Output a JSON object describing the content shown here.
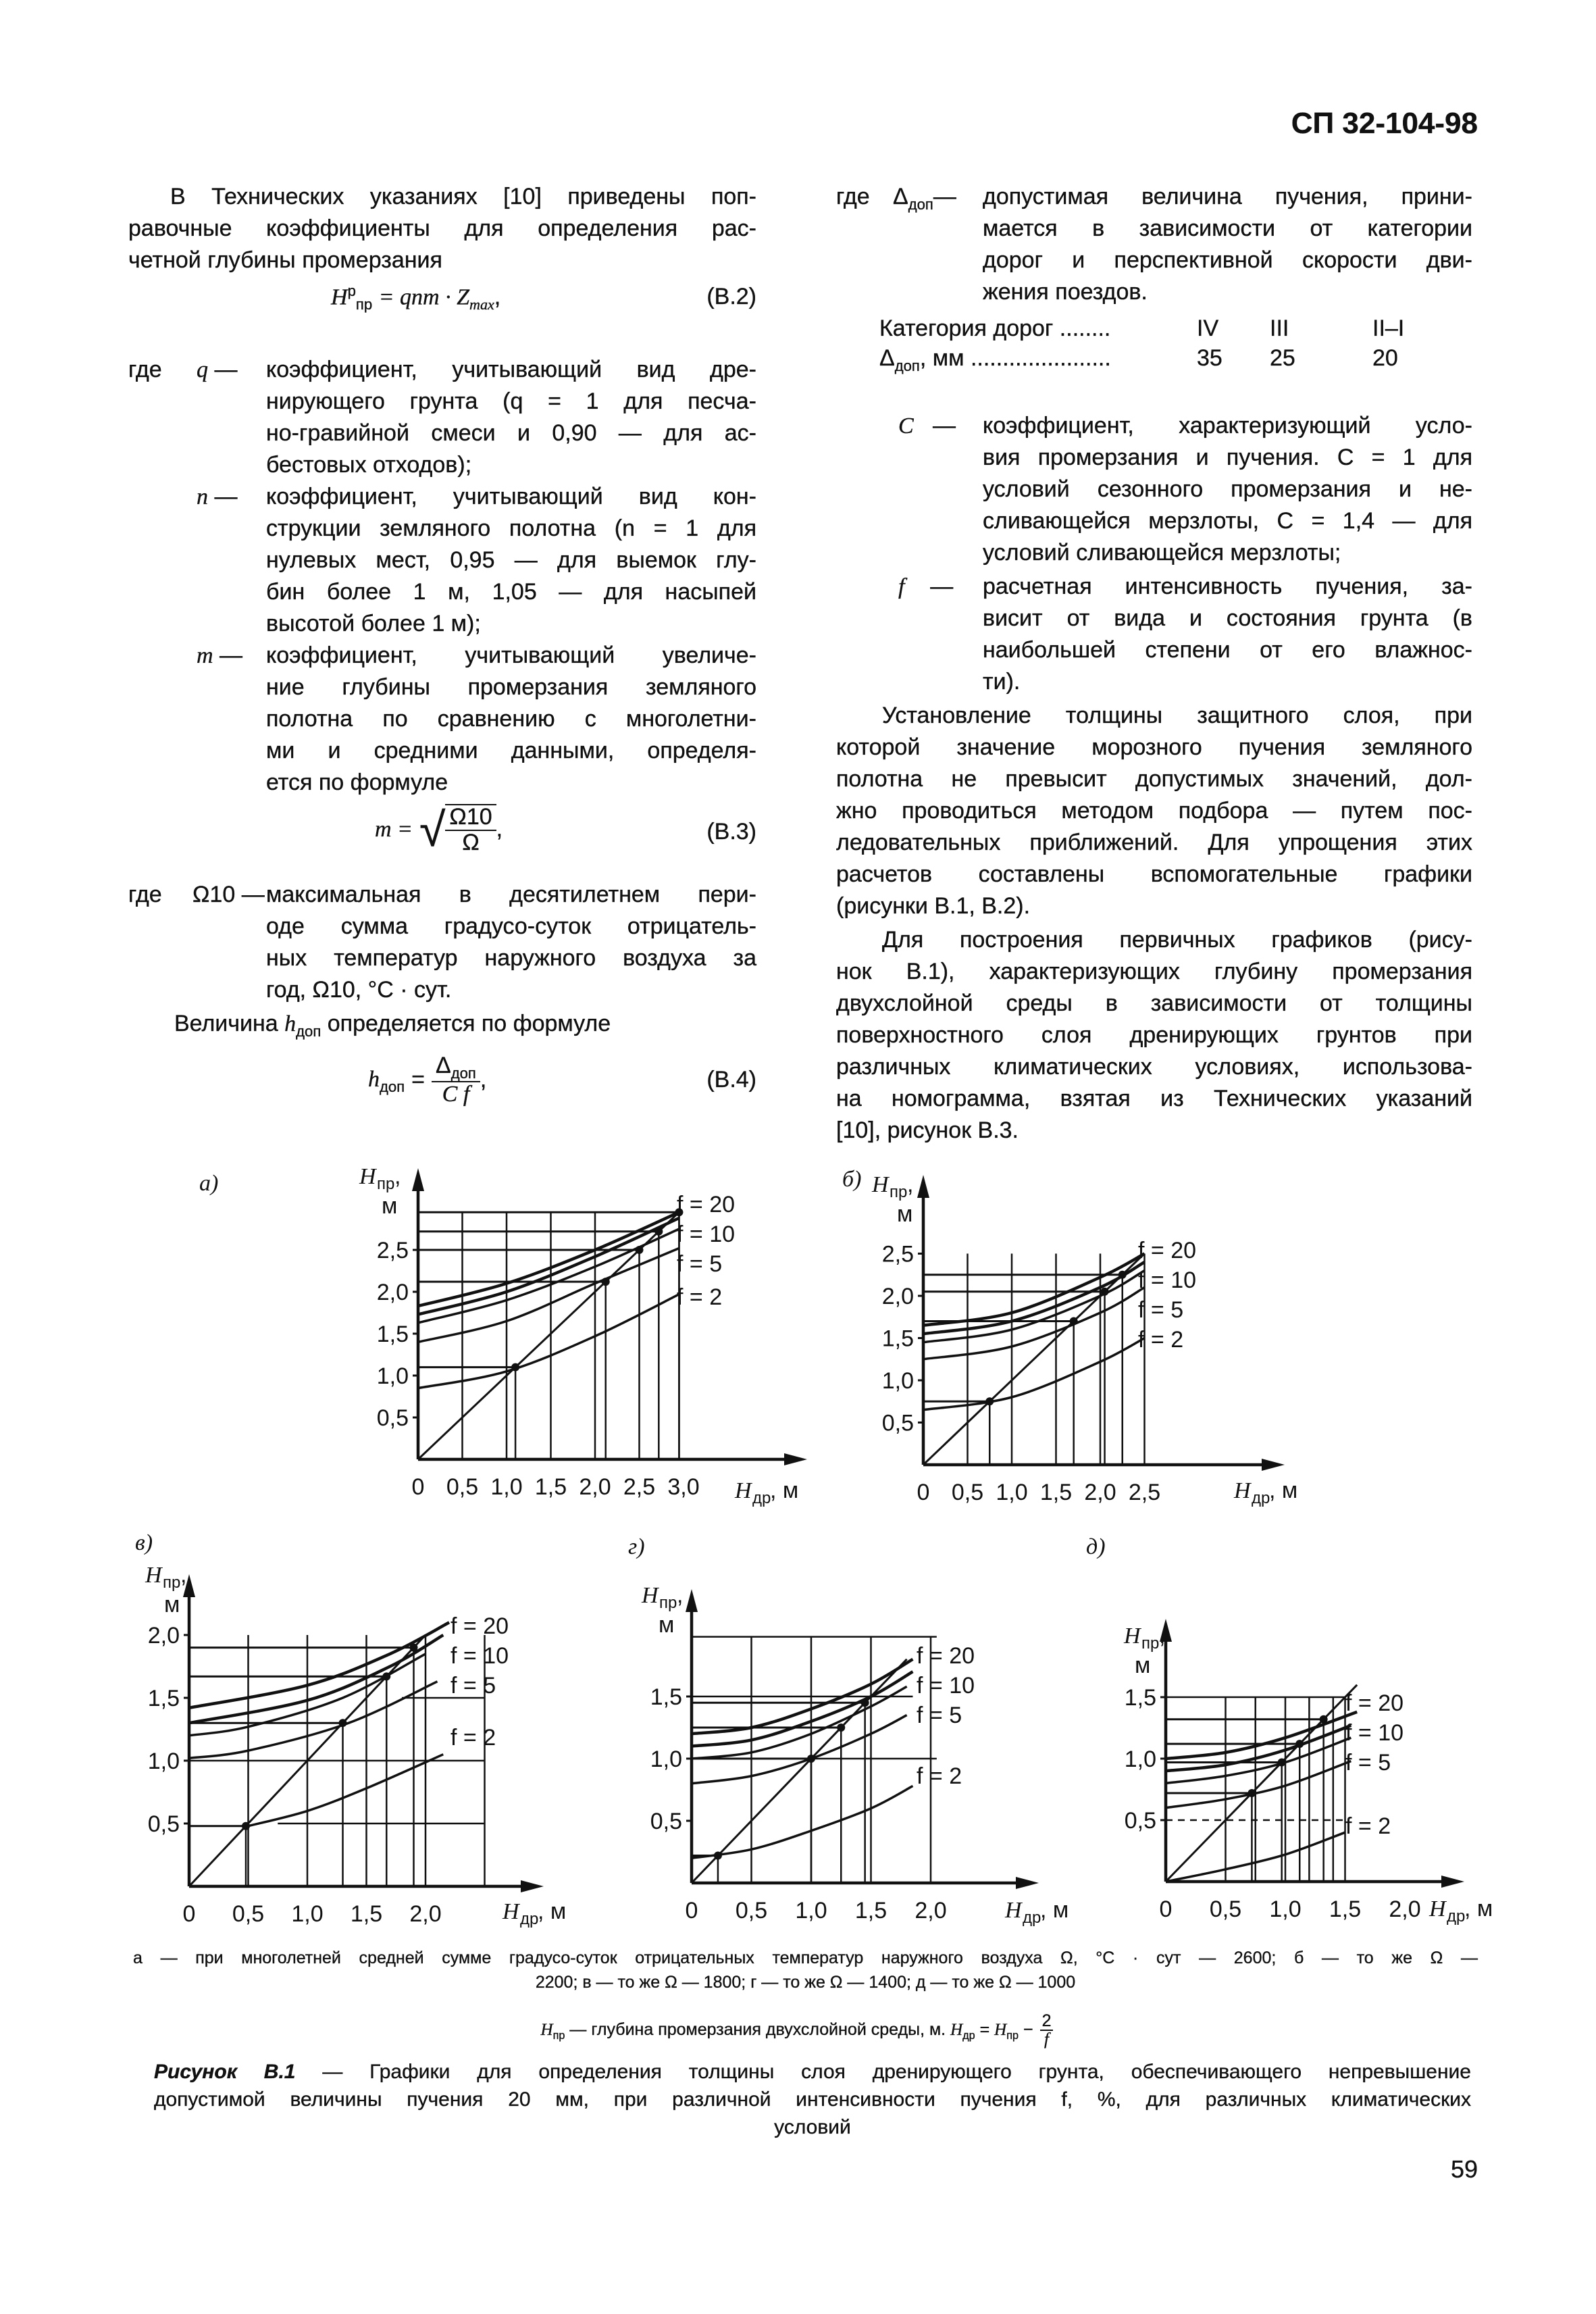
{
  "header": {
    "doc_code": "СП 32-104-98"
  },
  "left": {
    "p1": {
      "lines": [
        "В Технических указаниях [10] приведены поп-",
        "равочные коэффициенты для определения рас-",
        "четной глубины промерзания"
      ]
    },
    "formula_b2": {
      "lhs": "H",
      "lhs_sup": "р",
      "lhs_sub": "пр",
      "rhs": "= qnm · Z",
      "rhs_sub": "max",
      "tail": ",",
      "number": "(В.2)"
    },
    "where": "где",
    "defs": [
      {
        "symbol": "q",
        "dash": "—",
        "lines": [
          "коэффициент, учитывающий вид дре-",
          "нирующего грунта (q = 1 для песча-",
          "но-гравийной смеси и 0,90 — для ас-",
          "бестовых отходов);"
        ]
      },
      {
        "symbol": "n",
        "dash": "—",
        "lines": [
          "коэффициент, учитывающий вид кон-",
          "струкции земляного полотна (n = 1 для",
          "нулевых мест, 0,95 — для выемок глу-",
          "бин более 1 м, 1,05 — для насыпей",
          "высотой более 1 м);"
        ]
      },
      {
        "symbol": "m",
        "dash": "—",
        "lines": [
          "коэффициент, учитывающий увеличе-",
          "ние глубины промерзания земляного",
          "полотна по сравнению с многолетни-",
          "ми и средними данными, определя-",
          "ется по формуле"
        ]
      }
    ],
    "formula_b3": {
      "lhs": "m =",
      "num": "Ω10",
      "den": "Ω",
      "tail": ",",
      "number": "(В.3)"
    },
    "def_omega": {
      "where": "где",
      "symbol": "Ω10",
      "dash": "—",
      "lines": [
        "максимальная в десятилетнем пери-",
        "оде сумма градусо-суток отрицатель-",
        "ных температур наружного воздуха за",
        "год, Ω10, °С · сут."
      ]
    },
    "h_intro": {
      "pre": "Величина ",
      "sym": "h",
      "sub": "доп",
      "post": " определяется по формуле"
    },
    "formula_b4": {
      "lhs": "h",
      "lhs_sub": "доп",
      "eq": "=",
      "num": "Δ",
      "num_sub": "доп",
      "den": "C f",
      "tail": ",",
      "number": "(В.4)"
    }
  },
  "right": {
    "def_delta": {
      "where": "где",
      "symbol": "Δ",
      "symbol_sub": "доп",
      "dash": "—",
      "lines": [
        "допустимая величина пучения, прини-",
        "мается в зависимости от категории",
        "дорог и перспективной скорости дви-",
        "жения поездов."
      ]
    },
    "table": {
      "row1": {
        "label": "Категория дорог ........",
        "values": [
          "IV",
          "III",
          "II–I"
        ]
      },
      "row2": {
        "sym": "Δ",
        "sub": "доп",
        "label": ", мм ......................",
        "values": [
          "35",
          "25",
          "20"
        ]
      }
    },
    "defs": [
      {
        "symbol": "C",
        "dash": "—",
        "lines": [
          "коэффициент, характеризующий усло-",
          "вия промерзания и пучения. C = 1 для",
          "условий сезонного промерзания и не-",
          "сливающейся мерзлоты, C = 1,4 — для",
          "условий сливающейся мерзлоты;"
        ]
      },
      {
        "symbol": "f",
        "dash": "—",
        "lines": [
          "расчетная интенсивность пучения, за-",
          "висит от вида и состояния грунта (в",
          "наибольшей степени от его влажнос-",
          "ти)."
        ]
      }
    ],
    "p2": {
      "lines": [
        "Установление толщины защитного слоя, при",
        "которой значение морозного пучения земляного",
        "полотна не превысит допустимых значений, дол-",
        "жно проводиться методом подбора — путем пос-",
        "ледовательных приближений. Для упрощения этих",
        "расчетов составлены вспомогательные графики",
        "(рисунки В.1, В.2)."
      ]
    },
    "p3": {
      "lines": [
        "Для построения первичных графиков (рису-",
        "нок В.1), характеризующих глубину промерзания",
        "двухслойной среды в зависимости от толщины",
        "поверхностного слоя дренирующих грунтов при",
        "различных климатических условиях, использова-",
        "на номограмма, взятая из Технических указаний",
        "[10], рисунок В.3."
      ]
    }
  },
  "figure": {
    "y_axis": {
      "symbol": "H",
      "sub": "пр",
      "suffix": ",",
      "unit": "м"
    },
    "x_axis": {
      "symbol": "H",
      "sub": "др",
      "suffix": ", м"
    },
    "curve_labels": [
      "f = 20",
      "f = 10",
      "f = 5",
      "f = 2"
    ],
    "panels": [
      {
        "label": "а)",
        "x_ticks": [
          {
            "v": 0,
            "label": "0"
          },
          {
            "v": 0.5,
            "label": "0,5"
          },
          {
            "v": 1,
            "label": "1,0"
          },
          {
            "v": 1.5,
            "label": "1,5"
          },
          {
            "v": 2,
            "label": "2,0"
          },
          {
            "v": 2.5,
            "label": "2,5"
          },
          {
            "v": 3,
            "label": "3,0"
          }
        ],
        "y_ticks": [
          {
            "v": 0.5,
            "label": "0,5"
          },
          {
            "v": 1,
            "label": "1,0"
          },
          {
            "v": 1.5,
            "label": "1,5"
          },
          {
            "v": 2,
            "label": "2,0"
          },
          {
            "v": 2.5,
            "label": "2,5"
          }
        ],
        "grid_verticals": [
          0.5,
          1.0,
          1.5,
          2.0,
          2.95
        ],
        "grid_top": 2.95,
        "construction_points": [
          1.1,
          2.12,
          2.5,
          2.72,
          2.95
        ],
        "extra_hlines": [],
        "dashed_hlines": [],
        "diagonal_to": 2.95,
        "curves": [
          [
            [
              0,
              1.83
            ],
            [
              1,
              2.1
            ],
            [
              2,
              2.5
            ],
            [
              2.95,
              2.95
            ]
          ],
          [
            [
              0,
              1.73
            ],
            [
              1,
              2.0
            ],
            [
              2,
              2.42
            ],
            [
              2.95,
              2.88
            ]
          ],
          [
            [
              0,
              1.63
            ],
            [
              1,
              1.9
            ],
            [
              2,
              2.3
            ],
            [
              2.95,
              2.75
            ]
          ],
          [
            [
              0,
              1.4
            ],
            [
              1,
              1.65
            ],
            [
              2,
              2.1
            ],
            [
              2.95,
              2.52
            ]
          ],
          [
            [
              0,
              0.85
            ],
            [
              1,
              1.05
            ],
            [
              2,
              1.47
            ],
            [
              2.95,
              1.97
            ]
          ]
        ]
      },
      {
        "label": "б)",
        "x_ticks": [
          {
            "v": 0,
            "label": "0"
          },
          {
            "v": 0.5,
            "label": "0,5"
          },
          {
            "v": 1,
            "label": "1,0"
          },
          {
            "v": 1.5,
            "label": "1,5"
          },
          {
            "v": 2,
            "label": "2,0"
          },
          {
            "v": 2.5,
            "label": "2,5"
          }
        ],
        "y_ticks": [
          {
            "v": 0.5,
            "label": "0,5"
          },
          {
            "v": 1,
            "label": "1,0"
          },
          {
            "v": 1.5,
            "label": "1,5"
          },
          {
            "v": 2,
            "label": "2,0"
          },
          {
            "v": 2.5,
            "label": "2,5"
          }
        ],
        "grid_verticals": [
          0.5,
          1.0,
          1.5,
          2.0,
          2.5
        ],
        "grid_top": 2.5,
        "construction_points": [
          0.75,
          1.7,
          2.05,
          2.25
        ],
        "extra_hlines": [],
        "dashed_hlines": [],
        "diagonal_to": 2.5,
        "curves": [
          [
            [
              0,
              1.65
            ],
            [
              1,
              1.8
            ],
            [
              2,
              2.22
            ],
            [
              2.5,
              2.5
            ]
          ],
          [
            [
              0,
              1.55
            ],
            [
              1,
              1.7
            ],
            [
              2,
              2.1
            ],
            [
              2.5,
              2.4
            ]
          ],
          [
            [
              0,
              1.45
            ],
            [
              1,
              1.6
            ],
            [
              2,
              2.0
            ],
            [
              2.5,
              2.3
            ]
          ],
          [
            [
              0,
              1.25
            ],
            [
              1,
              1.4
            ],
            [
              2,
              1.8
            ],
            [
              2.5,
              2.1
            ]
          ],
          [
            [
              0,
              0.65
            ],
            [
              1,
              0.8
            ],
            [
              2,
              1.22
            ],
            [
              2.5,
              1.5
            ]
          ]
        ]
      },
      {
        "label": "в)",
        "x_ticks": [
          {
            "v": 0,
            "label": "0"
          },
          {
            "v": 0.5,
            "label": "0,5"
          },
          {
            "v": 1,
            "label": "1,0"
          },
          {
            "v": 1.5,
            "label": "1,5"
          },
          {
            "v": 2,
            "label": "2,0"
          }
        ],
        "y_ticks": [
          {
            "v": 0.5,
            "label": "0,5"
          },
          {
            "v": 1,
            "label": "1,0"
          },
          {
            "v": 1.5,
            "label": "1,5"
          },
          {
            "v": 2,
            "label": "2,0"
          }
        ],
        "grid_verticals": [
          0.5,
          1.0,
          1.5,
          2.0,
          2.5
        ],
        "grid_top": 2.0,
        "construction_points": [
          0.48,
          1.3,
          1.67,
          1.9
        ],
        "extra_hlines": [
          [
            1.0,
            0,
            2.5
          ],
          [
            1.5,
            1.8,
            2.5
          ],
          [
            0.5,
            0.75,
            2.5
          ]
        ],
        "dashed_hlines": [],
        "diagonal_to": 2.0,
        "curves": [
          [
            [
              0,
              1.42
            ],
            [
              1,
              1.6
            ],
            [
              1.7,
              1.85
            ],
            [
              2.2,
              2.1
            ]
          ],
          [
            [
              0,
              1.3
            ],
            [
              1,
              1.48
            ],
            [
              1.7,
              1.75
            ],
            [
              2.15,
              2.0
            ]
          ],
          [
            [
              0,
              1.2
            ],
            [
              0.5,
              1.27
            ],
            [
              1.3,
              1.5
            ],
            [
              2.0,
              1.85
            ]
          ],
          [
            [
              0,
              1.02
            ],
            [
              0.5,
              1.08
            ],
            [
              1.35,
              1.3
            ],
            [
              2.1,
              1.63
            ]
          ],
          [
            [
              0.5,
              0.48
            ],
            [
              1,
              0.6
            ],
            [
              1.5,
              0.78
            ],
            [
              2.15,
              1.05
            ]
          ]
        ]
      },
      {
        "label": "г)",
        "x_ticks": [
          {
            "v": 0,
            "label": "0"
          },
          {
            "v": 0.5,
            "label": "0,5"
          },
          {
            "v": 1,
            "label": "1,0"
          },
          {
            "v": 1.5,
            "label": "1,5"
          },
          {
            "v": 2,
            "label": "2,0"
          }
        ],
        "y_ticks": [
          {
            "v": 0.5,
            "label": "0,5"
          },
          {
            "v": 1,
            "label": "1,0"
          },
          {
            "v": 1.5,
            "label": "1,5"
          }
        ],
        "grid_verticals": [
          0.5,
          1.0,
          1.5,
          2.0
        ],
        "grid_top": 1.98,
        "construction_points": [
          0.22,
          1.0,
          1.25,
          1.45
        ],
        "extra_hlines": [
          [
            1.98,
            0,
            2.05
          ],
          [
            1.5,
            0,
            1.85
          ],
          [
            1.0,
            0,
            2.05
          ]
        ],
        "dashed_hlines": [],
        "diagonal_to": 1.8,
        "curves": [
          [
            [
              0,
              1.2
            ],
            [
              0.5,
              1.25
            ],
            [
              1.0,
              1.4
            ],
            [
              1.5,
              1.6
            ],
            [
              1.85,
              1.8
            ]
          ],
          [
            [
              0,
              1.1
            ],
            [
              0.5,
              1.15
            ],
            [
              1.0,
              1.3
            ],
            [
              1.5,
              1.5
            ],
            [
              1.85,
              1.7
            ]
          ],
          [
            [
              0,
              1.0
            ],
            [
              0.5,
              1.05
            ],
            [
              1.0,
              1.2
            ],
            [
              1.5,
              1.42
            ],
            [
              1.8,
              1.58
            ]
          ],
          [
            [
              0,
              0.8
            ],
            [
              0.5,
              0.86
            ],
            [
              1.0,
              1.0
            ],
            [
              1.5,
              1.2
            ],
            [
              1.8,
              1.35
            ]
          ],
          [
            [
              0,
              0.2
            ],
            [
              0.5,
              0.27
            ],
            [
              1.0,
              0.42
            ],
            [
              1.5,
              0.6
            ],
            [
              1.85,
              0.78
            ]
          ]
        ]
      },
      {
        "label": "д)",
        "x_ticks": [
          {
            "v": 0,
            "label": "0"
          },
          {
            "v": 0.5,
            "label": "0,5"
          },
          {
            "v": 1,
            "label": "1,0"
          },
          {
            "v": 1.5,
            "label": "1,5"
          },
          {
            "v": 2,
            "label": "2,0"
          }
        ],
        "y_ticks": [
          {
            "v": 0.5,
            "label": "0,5"
          },
          {
            "v": 1,
            "label": "1,0"
          },
          {
            "v": 1.5,
            "label": "1,5"
          }
        ],
        "grid_verticals": [
          0.5,
          0.75,
          1.0,
          1.2,
          1.4,
          1.5
        ],
        "grid_top": 1.5,
        "construction_points": [
          0.72,
          0.97,
          1.12,
          1.32
        ],
        "extra_hlines": [
          [
            1.5,
            0,
            1.5
          ]
        ],
        "dashed_hlines": [
          [
            0.5,
            0,
            1.5
          ]
        ],
        "diagonal_to": 1.6,
        "curves": [
          [
            [
              0,
              1.0
            ],
            [
              0.5,
              1.05
            ],
            [
              1.0,
              1.17
            ],
            [
              1.6,
              1.38
            ]
          ],
          [
            [
              0,
              0.9
            ],
            [
              0.5,
              0.95
            ],
            [
              1.0,
              1.07
            ],
            [
              1.55,
              1.27
            ]
          ],
          [
            [
              0,
              0.8
            ],
            [
              0.5,
              0.86
            ],
            [
              1.0,
              0.97
            ],
            [
              1.55,
              1.17
            ]
          ],
          [
            [
              0,
              0.6
            ],
            [
              0.5,
              0.67
            ],
            [
              1.0,
              0.78
            ],
            [
              1.55,
              0.98
            ]
          ],
          [
            [
              0,
              0.0
            ],
            [
              0.5,
              0.1
            ],
            [
              1.0,
              0.22
            ],
            [
              1.5,
              0.4
            ]
          ]
        ]
      }
    ],
    "legend": {
      "lines": [
        "а — при многолетней средней сумме градусо-суток отрицательных температур наружного воздуха Ω, °С · сут — 2600; б — то же Ω —",
        "2200; в — то же Ω — 1800; г — то же Ω — 1400; д — то же Ω — 1000"
      ]
    },
    "definition": {
      "sym": "H",
      "sub": "пр",
      "text": " — глубина промерзания двухслойной среды, м. ",
      "sym2": "H",
      "sub2": "др",
      "eq": " = ",
      "sym3": "H",
      "sub3": "пр",
      "minus": " − ",
      "num": "2",
      "den": "f"
    },
    "caption": {
      "label": "Рисунок В.1",
      "lines": [
        " — Графики для определения толщины слоя дренирующего грунта, обеспечивающего непревышение",
        "допустимой величины пучения 20 мм, при различной интенсивности пучения f, %, для различных климатических",
        "условий"
      ]
    }
  },
  "page_number": "59"
}
